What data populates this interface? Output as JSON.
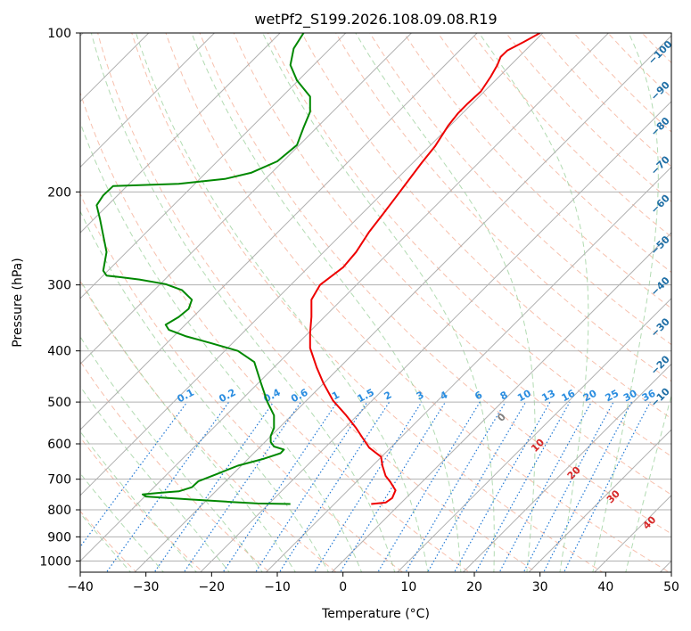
{
  "chart_data": {
    "type": "line",
    "title": "wetPf2_S199.2026.108.09.08.R19",
    "xlabel": "Temperature (°C)",
    "ylabel": "Pressure (hPa)",
    "xlim": [
      -40,
      50
    ],
    "ylim": [
      1050,
      100
    ],
    "y_scale": "log",
    "grid": true,
    "x_ticks": [
      "−40",
      "−30",
      "−20",
      "−10",
      "0",
      "10",
      "20",
      "30",
      "40",
      "50"
    ],
    "y_ticks": [
      {
        "p": 100,
        "label": "100"
      },
      {
        "p": 200,
        "label": "200"
      },
      {
        "p": 300,
        "label": "300"
      },
      {
        "p": 400,
        "label": "400"
      },
      {
        "p": 500,
        "label": "500"
      },
      {
        "p": 600,
        "label": "600"
      },
      {
        "p": 700,
        "label": "700"
      },
      {
        "p": 800,
        "label": "800"
      },
      {
        "p": 900,
        "label": "900"
      },
      {
        "p": 1000,
        "label": "1000"
      }
    ],
    "series": [
      {
        "role": "temperature",
        "color": "#ee0000",
        "points": [
          [
            4.3,
            780
          ],
          [
            6.5,
            775
          ],
          [
            7.5,
            760
          ],
          [
            8.0,
            735
          ],
          [
            7.2,
            708
          ],
          [
            6.5,
            690
          ],
          [
            6.0,
            660
          ],
          [
            5.8,
            635
          ],
          [
            4.0,
            610
          ],
          [
            3.0,
            585
          ],
          [
            2.0,
            560
          ],
          [
            0.5,
            530
          ],
          [
            -1.5,
            497
          ],
          [
            -3.0,
            460
          ],
          [
            -4.0,
            430
          ],
          [
            -5.0,
            395
          ],
          [
            -5.0,
            370
          ],
          [
            -4.8,
            345
          ],
          [
            -4.8,
            320
          ],
          [
            -3.5,
            300
          ],
          [
            0.0,
            278
          ],
          [
            2.0,
            260
          ],
          [
            4.0,
            238
          ],
          [
            6.0,
            221
          ],
          [
            8.0,
            205
          ],
          [
            10.0,
            190
          ],
          [
            12.0,
            176
          ],
          [
            14.0,
            164
          ],
          [
            16.0,
            150
          ],
          [
            17.5,
            142
          ],
          [
            19.0,
            136
          ],
          [
            21.0,
            129
          ],
          [
            22.5,
            121
          ],
          [
            23.5,
            115
          ],
          [
            24.0,
            111
          ],
          [
            25.0,
            108
          ],
          [
            27.5,
            104
          ],
          [
            30.0,
            100
          ]
        ]
      },
      {
        "role": "dewpoint",
        "color": "#008800",
        "points": [
          [
            -8.0,
            780
          ],
          [
            -13.0,
            778
          ],
          [
            -17.0,
            773
          ],
          [
            -23.0,
            765
          ],
          [
            -30.0,
            755
          ],
          [
            -30.5,
            748
          ],
          [
            -28.0,
            743
          ],
          [
            -25.0,
            738
          ],
          [
            -23.0,
            725
          ],
          [
            -22.0,
            706
          ],
          [
            -19.0,
            683
          ],
          [
            -16.0,
            660
          ],
          [
            -12.0,
            640
          ],
          [
            -9.5,
            625
          ],
          [
            -9.0,
            615
          ],
          [
            -10.5,
            607
          ],
          [
            -11.0,
            595
          ],
          [
            -11.0,
            580
          ],
          [
            -10.5,
            560
          ],
          [
            -10.5,
            530
          ],
          [
            -11.5,
            500
          ],
          [
            -12.5,
            460
          ],
          [
            -13.5,
            420
          ],
          [
            -16.0,
            400
          ],
          [
            -20.0,
            387
          ],
          [
            -24.0,
            375
          ],
          [
            -26.5,
            365
          ],
          [
            -27.0,
            357
          ],
          [
            -25.0,
            345
          ],
          [
            -23.5,
            333
          ],
          [
            -23.0,
            320
          ],
          [
            -24.5,
            307
          ],
          [
            -27.0,
            299
          ],
          [
            -31.0,
            293
          ],
          [
            -34.0,
            290
          ],
          [
            -36.0,
            288
          ],
          [
            -36.5,
            282
          ],
          [
            -36.0,
            260
          ],
          [
            -37.0,
            225
          ],
          [
            -37.5,
            212
          ],
          [
            -36.5,
            203
          ],
          [
            -35.0,
            195
          ],
          [
            -25.0,
            193
          ],
          [
            -18.0,
            189
          ],
          [
            -14.0,
            184
          ],
          [
            -10.0,
            175
          ],
          [
            -7.0,
            163
          ],
          [
            -6.0,
            151
          ],
          [
            -5.0,
            141
          ],
          [
            -5.0,
            132
          ],
          [
            -7.0,
            123
          ],
          [
            -8.0,
            115
          ],
          [
            -7.5,
            107
          ],
          [
            -6.0,
            100
          ]
        ]
      }
    ],
    "dry_adiabat_labels": [
      "−100",
      "−90",
      "−80",
      "−70",
      "−60",
      "−50",
      "−40",
      "−30",
      "−20",
      "−10"
    ],
    "mixing_ratio_labels": [
      "0.1",
      "0.2",
      "0.4",
      "0.6",
      "1",
      "1.5",
      "2",
      "3",
      "4",
      "6",
      "8",
      "10",
      "13",
      "16",
      "20",
      "25",
      "30",
      "36"
    ],
    "moist_adiabat_labels": [
      "0",
      "10",
      "20",
      "30",
      "40"
    ],
    "colors": {
      "temperature": "#ee0000",
      "dewpoint": "#008800",
      "isobar_isotherm_grid": "#b0b0b0",
      "dry_adiabat": "#f4a58a",
      "moist_adiabat": "#98cf98",
      "mixing_ratio": "#1f77d4",
      "dry_label": "#1f6fa6",
      "mixing_label": "#2a8de0",
      "moist_label": "#d62728",
      "zero_label": "#7f7f7f"
    }
  }
}
